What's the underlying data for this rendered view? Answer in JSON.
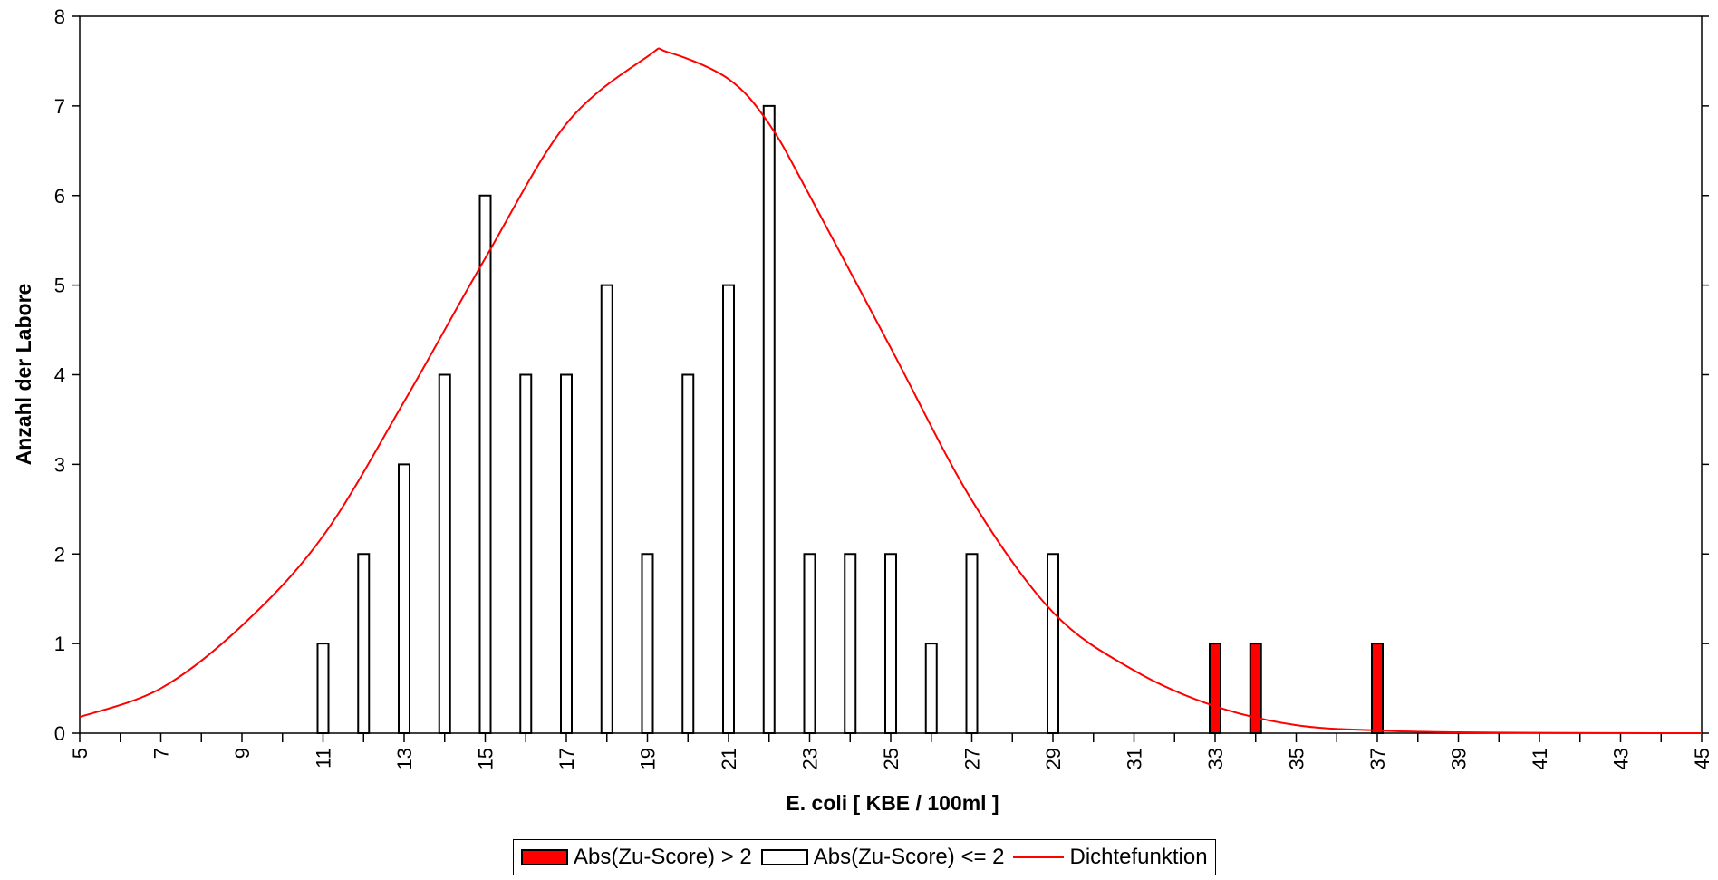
{
  "chart_data": {
    "type": "bar",
    "xlabel": "E. coli [ KBE / 100ml ]",
    "ylabel": "Anzahl der Labore",
    "xlim": [
      5,
      45
    ],
    "ylim": [
      0,
      8
    ],
    "x_tick_labels": [
      "5",
      "7",
      "9",
      "11",
      "13",
      "15",
      "17",
      "19",
      "21",
      "23",
      "25",
      "27",
      "29",
      "31",
      "33",
      "35",
      "37",
      "39",
      "41",
      "43",
      "45"
    ],
    "y_tick_labels": [
      "0",
      "1",
      "2",
      "3",
      "4",
      "5",
      "6",
      "7",
      "8"
    ],
    "colors": {
      "outlier": "#ff0000",
      "normal": "#ffffff",
      "density": "#ff0000",
      "outline": "#000000"
    },
    "series": [
      {
        "name": "Abs(Zu-Score) > 2",
        "x": [
          33,
          34,
          37
        ],
        "values": [
          1,
          1,
          1
        ]
      },
      {
        "name": "Abs(Zu-Score) <= 2",
        "x": [
          11,
          12,
          13,
          14,
          15,
          16,
          17,
          18,
          19,
          20,
          21,
          22,
          23,
          24,
          25,
          26,
          27,
          29
        ],
        "values": [
          1,
          2,
          3,
          4,
          6,
          4,
          4,
          5,
          2,
          4,
          5,
          7,
          2,
          2,
          2,
          1,
          2,
          2
        ]
      },
      {
        "name": "Dichtefunktion",
        "type": "line",
        "x": [
          5,
          7,
          9,
          11,
          13,
          15,
          17,
          19,
          19.5,
          21,
          22,
          23,
          25,
          27,
          29,
          31,
          33,
          35,
          37,
          39,
          41,
          43,
          45
        ],
        "values": [
          0.18,
          0.5,
          1.2,
          2.2,
          3.7,
          5.3,
          6.8,
          7.55,
          7.6,
          7.3,
          6.8,
          6.0,
          4.3,
          2.6,
          1.35,
          0.7,
          0.3,
          0.09,
          0.03,
          0.01,
          0.004,
          0.001,
          0.0005
        ]
      }
    ],
    "legend_position": "bottom"
  }
}
